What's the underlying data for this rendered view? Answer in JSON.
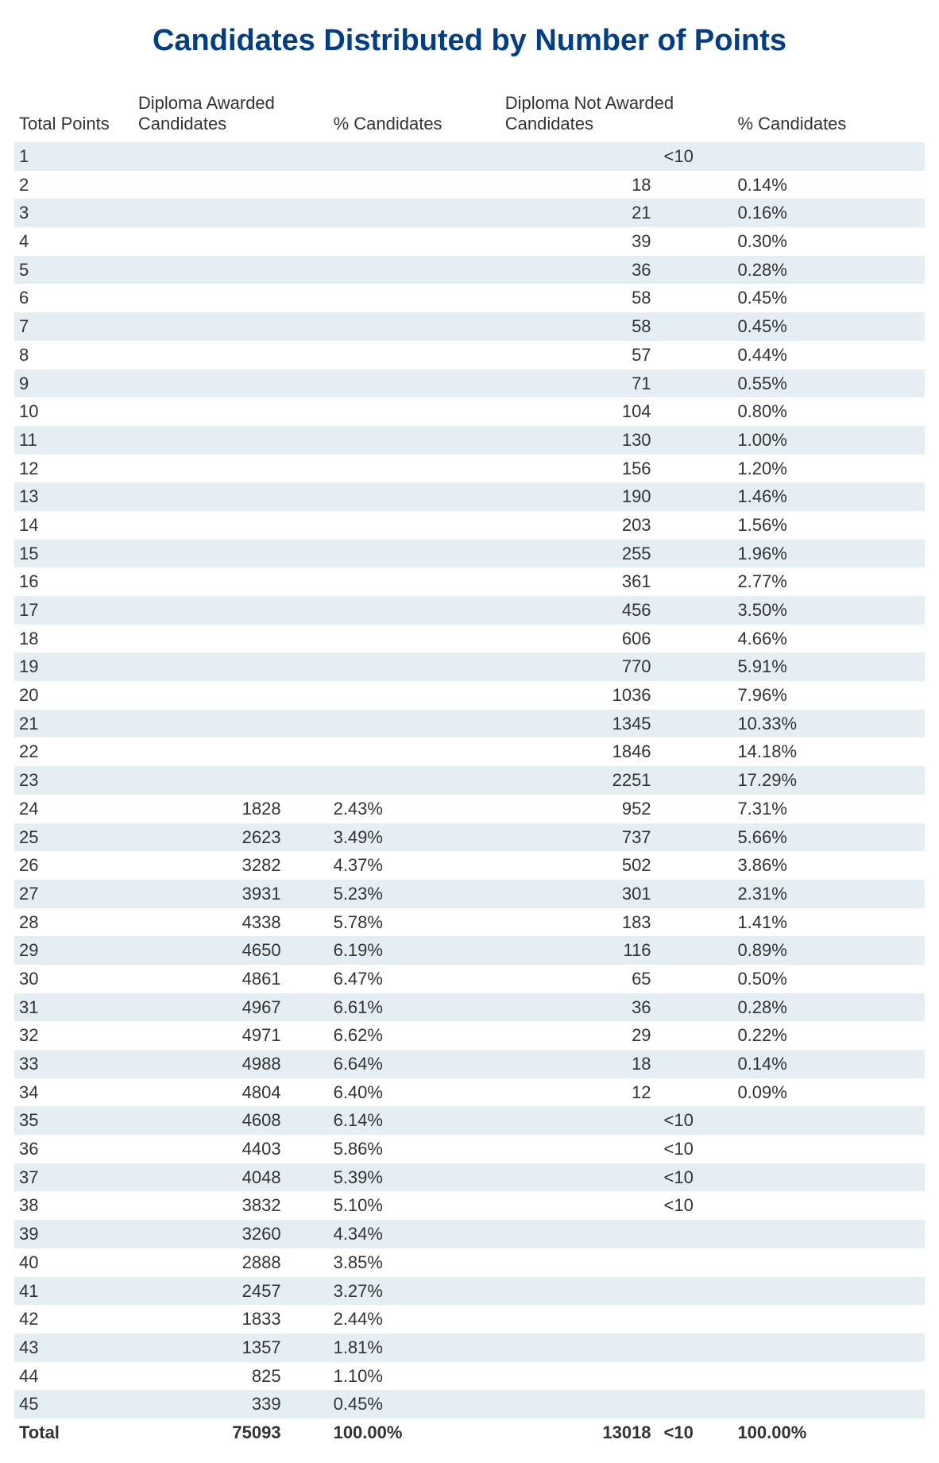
{
  "title": "Candidates Distributed by Number of Points",
  "colors": {
    "title": "#003e8a",
    "row_stripe": "#e5eef2",
    "background": "#ffffff",
    "text": "#333333"
  },
  "table": {
    "columns": {
      "points": "Total Points",
      "awarded_cand": "Diploma Awarded Candidates",
      "awarded_pct": "%  Candidates",
      "notawarded_cand": "Diploma Not Awarded Candidates",
      "notawarded_pct": "%  Candidates"
    },
    "rows": [
      {
        "points": "1",
        "ac": "",
        "ap": "",
        "nc": "",
        "lt": "<10",
        "np": ""
      },
      {
        "points": "2",
        "ac": "",
        "ap": "",
        "nc": "18",
        "lt": "",
        "np": "0.14%"
      },
      {
        "points": "3",
        "ac": "",
        "ap": "",
        "nc": "21",
        "lt": "",
        "np": "0.16%"
      },
      {
        "points": "4",
        "ac": "",
        "ap": "",
        "nc": "39",
        "lt": "",
        "np": "0.30%"
      },
      {
        "points": "5",
        "ac": "",
        "ap": "",
        "nc": "36",
        "lt": "",
        "np": "0.28%"
      },
      {
        "points": "6",
        "ac": "",
        "ap": "",
        "nc": "58",
        "lt": "",
        "np": "0.45%"
      },
      {
        "points": "7",
        "ac": "",
        "ap": "",
        "nc": "58",
        "lt": "",
        "np": "0.45%"
      },
      {
        "points": "8",
        "ac": "",
        "ap": "",
        "nc": "57",
        "lt": "",
        "np": "0.44%"
      },
      {
        "points": "9",
        "ac": "",
        "ap": "",
        "nc": "71",
        "lt": "",
        "np": "0.55%"
      },
      {
        "points": "10",
        "ac": "",
        "ap": "",
        "nc": "104",
        "lt": "",
        "np": "0.80%"
      },
      {
        "points": "11",
        "ac": "",
        "ap": "",
        "nc": "130",
        "lt": "",
        "np": "1.00%"
      },
      {
        "points": "12",
        "ac": "",
        "ap": "",
        "nc": "156",
        "lt": "",
        "np": "1.20%"
      },
      {
        "points": "13",
        "ac": "",
        "ap": "",
        "nc": "190",
        "lt": "",
        "np": "1.46%"
      },
      {
        "points": "14",
        "ac": "",
        "ap": "",
        "nc": "203",
        "lt": "",
        "np": "1.56%"
      },
      {
        "points": "15",
        "ac": "",
        "ap": "",
        "nc": "255",
        "lt": "",
        "np": "1.96%"
      },
      {
        "points": "16",
        "ac": "",
        "ap": "",
        "nc": "361",
        "lt": "",
        "np": "2.77%"
      },
      {
        "points": "17",
        "ac": "",
        "ap": "",
        "nc": "456",
        "lt": "",
        "np": "3.50%"
      },
      {
        "points": "18",
        "ac": "",
        "ap": "",
        "nc": "606",
        "lt": "",
        "np": "4.66%"
      },
      {
        "points": "19",
        "ac": "",
        "ap": "",
        "nc": "770",
        "lt": "",
        "np": "5.91%"
      },
      {
        "points": "20",
        "ac": "",
        "ap": "",
        "nc": "1036",
        "lt": "",
        "np": "7.96%"
      },
      {
        "points": "21",
        "ac": "",
        "ap": "",
        "nc": "1345",
        "lt": "",
        "np": "10.33%"
      },
      {
        "points": "22",
        "ac": "",
        "ap": "",
        "nc": "1846",
        "lt": "",
        "np": "14.18%"
      },
      {
        "points": "23",
        "ac": "",
        "ap": "",
        "nc": "2251",
        "lt": "",
        "np": "17.29%"
      },
      {
        "points": "24",
        "ac": "1828",
        "ap": "2.43%",
        "nc": "952",
        "lt": "",
        "np": "7.31%"
      },
      {
        "points": "25",
        "ac": "2623",
        "ap": "3.49%",
        "nc": "737",
        "lt": "",
        "np": "5.66%"
      },
      {
        "points": "26",
        "ac": "3282",
        "ap": "4.37%",
        "nc": "502",
        "lt": "",
        "np": "3.86%"
      },
      {
        "points": "27",
        "ac": "3931",
        "ap": "5.23%",
        "nc": "301",
        "lt": "",
        "np": "2.31%"
      },
      {
        "points": "28",
        "ac": "4338",
        "ap": "5.78%",
        "nc": "183",
        "lt": "",
        "np": "1.41%"
      },
      {
        "points": "29",
        "ac": "4650",
        "ap": "6.19%",
        "nc": "116",
        "lt": "",
        "np": "0.89%"
      },
      {
        "points": "30",
        "ac": "4861",
        "ap": "6.47%",
        "nc": "65",
        "lt": "",
        "np": "0.50%"
      },
      {
        "points": "31",
        "ac": "4967",
        "ap": "6.61%",
        "nc": "36",
        "lt": "",
        "np": "0.28%"
      },
      {
        "points": "32",
        "ac": "4971",
        "ap": "6.62%",
        "nc": "29",
        "lt": "",
        "np": "0.22%"
      },
      {
        "points": "33",
        "ac": "4988",
        "ap": "6.64%",
        "nc": "18",
        "lt": "",
        "np": "0.14%"
      },
      {
        "points": "34",
        "ac": "4804",
        "ap": "6.40%",
        "nc": "12",
        "lt": "",
        "np": "0.09%"
      },
      {
        "points": "35",
        "ac": "4608",
        "ap": "6.14%",
        "nc": "",
        "lt": "<10",
        "np": ""
      },
      {
        "points": "36",
        "ac": "4403",
        "ap": "5.86%",
        "nc": "",
        "lt": "<10",
        "np": ""
      },
      {
        "points": "37",
        "ac": "4048",
        "ap": "5.39%",
        "nc": "",
        "lt": "<10",
        "np": ""
      },
      {
        "points": "38",
        "ac": "3832",
        "ap": "5.10%",
        "nc": "",
        "lt": "<10",
        "np": ""
      },
      {
        "points": "39",
        "ac": "3260",
        "ap": "4.34%",
        "nc": "",
        "lt": "",
        "np": ""
      },
      {
        "points": "40",
        "ac": "2888",
        "ap": "3.85%",
        "nc": "",
        "lt": "",
        "np": ""
      },
      {
        "points": "41",
        "ac": "2457",
        "ap": "3.27%",
        "nc": "",
        "lt": "",
        "np": ""
      },
      {
        "points": "42",
        "ac": "1833",
        "ap": "2.44%",
        "nc": "",
        "lt": "",
        "np": ""
      },
      {
        "points": "43",
        "ac": "1357",
        "ap": "1.81%",
        "nc": "",
        "lt": "",
        "np": ""
      },
      {
        "points": "44",
        "ac": "825",
        "ap": "1.10%",
        "nc": "",
        "lt": "",
        "np": ""
      },
      {
        "points": "45",
        "ac": "339",
        "ap": "0.45%",
        "nc": "",
        "lt": "",
        "np": ""
      }
    ],
    "total": {
      "points": "Total",
      "ac": "75093",
      "ap": "100.00%",
      "nc": "13018",
      "lt": "<10",
      "np": "100.00%"
    }
  }
}
